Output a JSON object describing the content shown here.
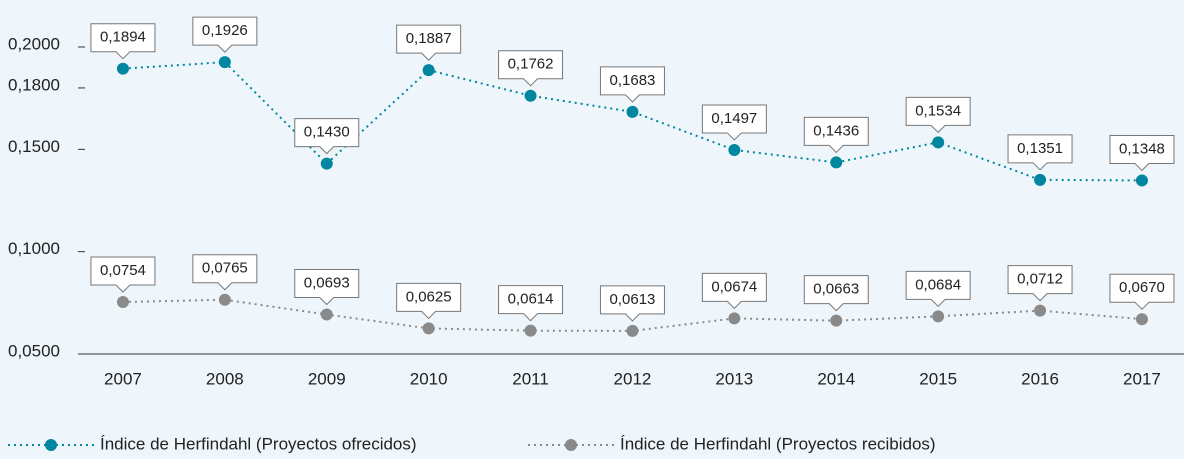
{
  "chart_data": {
    "type": "line",
    "categories": [
      "2007",
      "2008",
      "2009",
      "2010",
      "2011",
      "2012",
      "2013",
      "2014",
      "2015",
      "2016",
      "2017"
    ],
    "series": [
      {
        "name": "Índice de Herfindahl (Proyectos ofrecidos)",
        "color": "#00879f",
        "values": [
          0.1894,
          0.1926,
          0.143,
          0.1887,
          0.1762,
          0.1683,
          0.1497,
          0.1436,
          0.1534,
          0.1351,
          0.1348
        ],
        "value_labels": [
          "0,1894",
          "0,1926",
          "0,1430",
          "0,1887",
          "0,1762",
          "0,1683",
          "0,1497",
          "0,1436",
          "0,1534",
          "0,1351",
          "0,1348"
        ]
      },
      {
        "name": "Índice de Herfindahl (Proyectos recibidos)",
        "color": "#8a8a8a",
        "values": [
          0.0754,
          0.0765,
          0.0693,
          0.0625,
          0.0614,
          0.0613,
          0.0674,
          0.0663,
          0.0684,
          0.0712,
          0.067
        ],
        "value_labels": [
          "0,0754",
          "0,0765",
          "0,0693",
          "0,0625",
          "0,0614",
          "0,0613",
          "0,0674",
          "0,0663",
          "0,0684",
          "0,0712",
          "0,0670"
        ]
      }
    ],
    "ylim": [
      0.05,
      0.2
    ],
    "yticks": [
      {
        "value": 0.05,
        "label": "0,0500"
      },
      {
        "value": 0.1,
        "label": "0,1000"
      },
      {
        "value": 0.15,
        "label": "0,1500"
      },
      {
        "value": 0.18,
        "label": "0,1800"
      },
      {
        "value": 0.2,
        "label": "0,2000"
      }
    ],
    "grid": false,
    "legend": "bottom"
  }
}
